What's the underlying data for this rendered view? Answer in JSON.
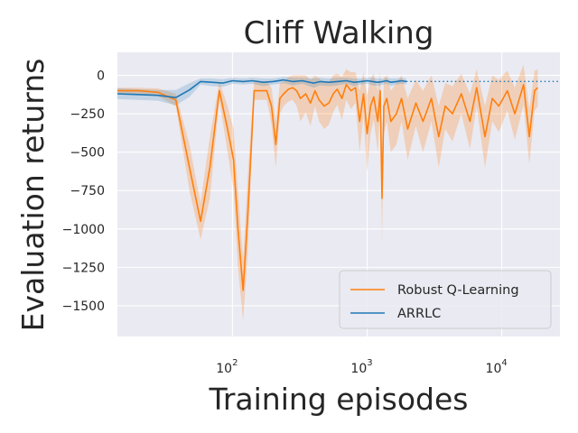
{
  "chart_data": {
    "type": "line",
    "title": "Cliff Walking",
    "xlabel": "Training episodes",
    "ylabel": "Evaluation returns",
    "xscale": "log",
    "xlim": [
      14,
      27000
    ],
    "ylim": [
      -1700,
      150
    ],
    "xticks": [
      {
        "value": 100,
        "base": "10",
        "exp": "2"
      },
      {
        "value": 1000,
        "base": "10",
        "exp": "3"
      },
      {
        "value": 10000,
        "base": "10",
        "exp": "4"
      }
    ],
    "yticks": [
      {
        "value": 0,
        "label": "0"
      },
      {
        "value": -250,
        "label": "−250"
      },
      {
        "value": -500,
        "label": "−500"
      },
      {
        "value": -750,
        "label": "−750"
      },
      {
        "value": -1000,
        "label": "−1000"
      },
      {
        "value": -1250,
        "label": "−1250"
      },
      {
        "value": -1500,
        "label": "−1500"
      }
    ],
    "grid": true,
    "legend_position": "lower-right",
    "reference_line": {
      "y": -40,
      "style": "dotted",
      "color": "#1f77b4"
    },
    "series": [
      {
        "name": "Robust Q-Learning",
        "color": "#ff7f0e",
        "band_color": "#ff7f0e",
        "band_opacity": 0.25,
        "points": [
          [
            14,
            -100
          ],
          [
            20,
            -100
          ],
          [
            28,
            -110
          ],
          [
            38,
            -160
          ],
          [
            48,
            -600
          ],
          [
            58,
            -950
          ],
          [
            68,
            -600
          ],
          [
            80,
            -100
          ],
          [
            92,
            -350
          ],
          [
            102,
            -550
          ],
          [
            110,
            -1000
          ],
          [
            120,
            -1400
          ],
          [
            130,
            -900
          ],
          [
            145,
            -100
          ],
          [
            160,
            -100
          ],
          [
            180,
            -100
          ],
          [
            195,
            -200
          ],
          [
            210,
            -450
          ],
          [
            225,
            -150
          ],
          [
            240,
            -120
          ],
          [
            260,
            -90
          ],
          [
            280,
            -80
          ],
          [
            300,
            -100
          ],
          [
            320,
            -150
          ],
          [
            350,
            -120
          ],
          [
            380,
            -180
          ],
          [
            410,
            -100
          ],
          [
            440,
            -160
          ],
          [
            480,
            -200
          ],
          [
            520,
            -180
          ],
          [
            560,
            -120
          ],
          [
            600,
            -90
          ],
          [
            650,
            -150
          ],
          [
            700,
            -60
          ],
          [
            760,
            -100
          ],
          [
            820,
            -80
          ],
          [
            880,
            -300
          ],
          [
            940,
            -120
          ],
          [
            1000,
            -380
          ],
          [
            1060,
            -200
          ],
          [
            1120,
            -140
          ],
          [
            1200,
            -300
          ],
          [
            1250,
            -100
          ],
          [
            1290,
            -800
          ],
          [
            1330,
            -200
          ],
          [
            1400,
            -150
          ],
          [
            1500,
            -300
          ],
          [
            1650,
            -250
          ],
          [
            1800,
            -150
          ],
          [
            2000,
            -350
          ],
          [
            2300,
            -180
          ],
          [
            2600,
            -300
          ],
          [
            3000,
            -150
          ],
          [
            3400,
            -400
          ],
          [
            3800,
            -200
          ],
          [
            4300,
            -250
          ],
          [
            5000,
            -120
          ],
          [
            5800,
            -300
          ],
          [
            6500,
            -80
          ],
          [
            7500,
            -400
          ],
          [
            8500,
            -150
          ],
          [
            9500,
            -200
          ],
          [
            11000,
            -100
          ],
          [
            12500,
            -250
          ],
          [
            14500,
            -60
          ],
          [
            16000,
            -400
          ],
          [
            17500,
            -100
          ],
          [
            18500,
            -80
          ]
        ],
        "band_halfwidth": [
          20,
          20,
          25,
          40,
          150,
          120,
          200,
          60,
          150,
          200,
          250,
          200,
          250,
          60,
          60,
          60,
          120,
          150,
          100,
          80,
          80,
          80,
          100,
          150,
          120,
          150,
          100,
          140,
          150,
          140,
          120,
          100,
          140,
          100,
          120,
          100,
          200,
          140,
          250,
          180,
          150,
          200,
          120,
          280,
          180,
          150,
          200,
          200,
          150,
          200,
          150,
          200,
          150,
          200,
          150,
          180,
          130,
          180,
          120,
          200,
          150,
          170,
          130,
          170,
          130,
          180,
          130,
          120
        ]
      },
      {
        "name": "ARRLC",
        "color": "#1f77b4",
        "band_color": "#1f77b4",
        "band_opacity": 0.2,
        "points": [
          [
            14,
            -120
          ],
          [
            20,
            -125
          ],
          [
            28,
            -130
          ],
          [
            38,
            -145
          ],
          [
            48,
            -95
          ],
          [
            58,
            -40
          ],
          [
            70,
            -45
          ],
          [
            85,
            -50
          ],
          [
            100,
            -35
          ],
          [
            120,
            -40
          ],
          [
            140,
            -35
          ],
          [
            170,
            -45
          ],
          [
            200,
            -40
          ],
          [
            240,
            -30
          ],
          [
            280,
            -40
          ],
          [
            330,
            -35
          ],
          [
            400,
            -50
          ],
          [
            450,
            -40
          ],
          [
            520,
            -45
          ],
          [
            600,
            -40
          ],
          [
            700,
            -35
          ],
          [
            800,
            -45
          ],
          [
            900,
            -40
          ],
          [
            1000,
            -35
          ],
          [
            1100,
            -40
          ],
          [
            1200,
            -45
          ],
          [
            1300,
            -40
          ],
          [
            1400,
            -35
          ],
          [
            1500,
            -45
          ],
          [
            1650,
            -40
          ],
          [
            1800,
            -35
          ],
          [
            1950,
            -40
          ]
        ],
        "band_halfwidth": [
          35,
          35,
          35,
          50,
          45,
          20,
          25,
          25,
          20,
          20,
          20,
          25,
          20,
          20,
          25,
          20,
          30,
          25,
          25,
          25,
          20,
          25,
          20,
          20,
          25,
          25,
          20,
          20,
          25,
          20,
          20,
          20
        ]
      }
    ]
  }
}
